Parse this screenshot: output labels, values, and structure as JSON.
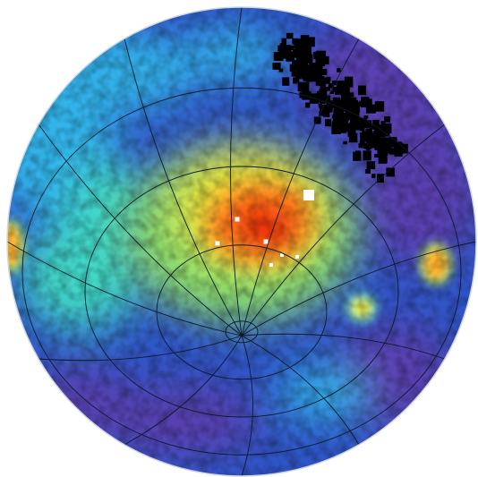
{
  "map": {
    "projection": "orthographic",
    "colormap": [
      "#3f2a86",
      "#5a3fb0",
      "#2f55c8",
      "#2e7fe0",
      "#33b4ea",
      "#3fd7c7",
      "#8de06a",
      "#e7ea3a",
      "#ffb02a",
      "#ff6a16",
      "#ef2b0c"
    ],
    "background_color": "#2f55c8",
    "saturated_color": "#000000",
    "graticule_color": "#0a1a2a",
    "graticule": {
      "pole_longitudes_deg": [
        0,
        30,
        60,
        90,
        120,
        150,
        180,
        210,
        240,
        270,
        300,
        330
      ],
      "latitude_rings_deg": [
        15,
        30,
        45,
        60
      ]
    },
    "features": [
      {
        "name": "central-maximum",
        "value": 1.0
      },
      {
        "name": "black-saturated-region",
        "value": "saturated"
      },
      {
        "name": "right-blob",
        "value": 0.8
      },
      {
        "name": "right-small-blob",
        "value": 0.65
      },
      {
        "name": "left-edge-blob",
        "value": 0.75
      }
    ]
  }
}
